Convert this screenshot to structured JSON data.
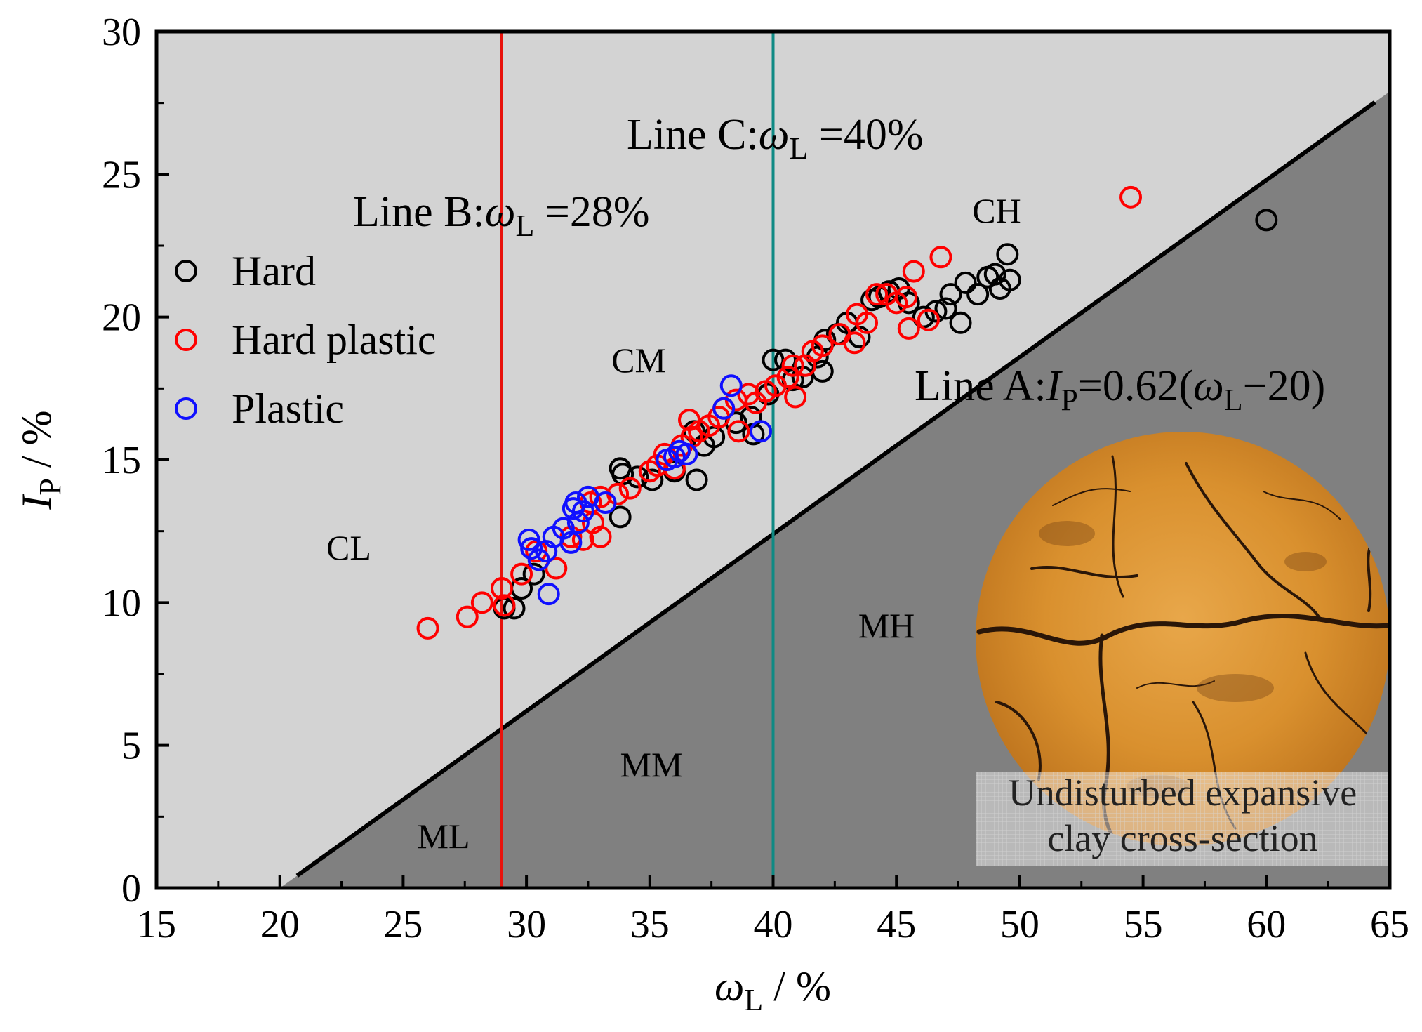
{
  "colors": {
    "upper_region": "#d3d3d3",
    "lower_region": "#808080",
    "line_a": "#000000",
    "line_b": "#e8120c",
    "line_c": "#0f8a84",
    "hard": "#000000",
    "hard_plastic": "#ff0000",
    "plastic": "#1010ff"
  },
  "chart_data": {
    "type": "scatter",
    "xlabel_main": "ω",
    "xlabel_sub": "L",
    "xlabel_tail": " / %",
    "ylabel_main": "I",
    "ylabel_sub": "P",
    "ylabel_tail": " / %",
    "xlim": [
      15,
      65
    ],
    "ylim": [
      0,
      30
    ],
    "x_ticks": [
      "15",
      "20",
      "25",
      "30",
      "35",
      "40",
      "45",
      "50",
      "55",
      "60",
      "65"
    ],
    "y_ticks": [
      "0",
      "5",
      "10",
      "15",
      "20",
      "25",
      "30"
    ],
    "lines": {
      "a": {
        "prefix": "Line A",
        "colon": ":",
        "var_main": "I",
        "var_sub": "P",
        "eq": "=0.62(",
        "w": "ω",
        "w_sub": "L",
        "tail": "−20)",
        "slope": 0.62,
        "x0": 20
      },
      "b": {
        "prefix": "Line B",
        "colon": ":",
        "w": "ω",
        "w_sub": "L",
        "eq": " =28%",
        "x": 29
      },
      "c": {
        "prefix": "Line C",
        "colon": ":",
        "w": "ω",
        "w_sub": "L",
        "eq": " =40%",
        "x": 40
      }
    },
    "regions": [
      "CH",
      "CM",
      "CL",
      "MH",
      "MM",
      "ML"
    ],
    "legend": [
      "Hard",
      "Hard plastic",
      "Plastic"
    ],
    "inset_caption": [
      "Undisturbed expansive",
      "clay cross-section"
    ],
    "series": [
      {
        "name": "Hard",
        "points": [
          [
            29.1,
            9.8
          ],
          [
            29.5,
            9.8
          ],
          [
            29.8,
            10.5
          ],
          [
            30.3,
            11.0
          ],
          [
            33.8,
            13.0
          ],
          [
            33.9,
            14.5
          ],
          [
            33.8,
            14.7
          ],
          [
            34.5,
            14.4
          ],
          [
            35.1,
            14.3
          ],
          [
            36.0,
            14.6
          ],
          [
            36.9,
            14.3
          ],
          [
            36.8,
            16.0
          ],
          [
            37.2,
            15.5
          ],
          [
            37.6,
            15.8
          ],
          [
            38.5,
            16.3
          ],
          [
            39.1,
            16.5
          ],
          [
            39.2,
            15.9
          ],
          [
            39.8,
            17.3
          ],
          [
            40.0,
            18.5
          ],
          [
            40.5,
            18.5
          ],
          [
            40.8,
            17.8
          ],
          [
            41.2,
            17.9
          ],
          [
            41.8,
            18.6
          ],
          [
            42.0,
            18.1
          ],
          [
            42.1,
            19.2
          ],
          [
            42.6,
            19.4
          ],
          [
            43.0,
            19.8
          ],
          [
            43.5,
            19.3
          ],
          [
            44.0,
            20.6
          ],
          [
            44.3,
            20.7
          ],
          [
            44.7,
            20.9
          ],
          [
            45.1,
            21.0
          ],
          [
            45.5,
            20.5
          ],
          [
            46.1,
            20.0
          ],
          [
            46.6,
            20.2
          ],
          [
            47.0,
            20.3
          ],
          [
            47.2,
            20.8
          ],
          [
            47.6,
            19.8
          ],
          [
            47.8,
            21.2
          ],
          [
            48.3,
            20.8
          ],
          [
            48.7,
            21.4
          ],
          [
            49.0,
            21.5
          ],
          [
            49.2,
            21.0
          ],
          [
            49.5,
            22.2
          ],
          [
            49.6,
            21.3
          ],
          [
            60.0,
            23.4
          ]
        ]
      },
      {
        "name": "Hard plastic",
        "points": [
          [
            26.0,
            9.1
          ],
          [
            27.6,
            9.5
          ],
          [
            28.2,
            10.0
          ],
          [
            29.0,
            10.5
          ],
          [
            29.1,
            9.9
          ],
          [
            29.8,
            11.0
          ],
          [
            30.4,
            11.8
          ],
          [
            31.2,
            11.2
          ],
          [
            31.8,
            12.3
          ],
          [
            32.3,
            12.2
          ],
          [
            32.7,
            12.8
          ],
          [
            33.0,
            12.3
          ],
          [
            32.6,
            13.5
          ],
          [
            33.0,
            13.7
          ],
          [
            33.7,
            13.8
          ],
          [
            34.2,
            14.0
          ],
          [
            35.0,
            14.6
          ],
          [
            35.3,
            14.8
          ],
          [
            35.6,
            15.2
          ],
          [
            36.0,
            14.7
          ],
          [
            36.3,
            15.5
          ],
          [
            36.7,
            15.8
          ],
          [
            36.6,
            16.4
          ],
          [
            37.0,
            16.0
          ],
          [
            37.4,
            16.2
          ],
          [
            37.8,
            16.5
          ],
          [
            38.0,
            16.8
          ],
          [
            38.5,
            17.1
          ],
          [
            38.6,
            16.0
          ],
          [
            39.0,
            17.3
          ],
          [
            39.3,
            17.0
          ],
          [
            39.7,
            17.4
          ],
          [
            40.1,
            17.6
          ],
          [
            40.6,
            17.9
          ],
          [
            40.8,
            18.3
          ],
          [
            40.9,
            17.2
          ],
          [
            41.3,
            18.3
          ],
          [
            41.6,
            18.8
          ],
          [
            42.0,
            19.0
          ],
          [
            42.7,
            19.4
          ],
          [
            43.3,
            19.1
          ],
          [
            43.4,
            20.1
          ],
          [
            43.8,
            19.8
          ],
          [
            44.2,
            20.8
          ],
          [
            44.6,
            20.8
          ],
          [
            45.0,
            20.5
          ],
          [
            45.4,
            20.7
          ],
          [
            45.5,
            19.6
          ],
          [
            45.7,
            21.6
          ],
          [
            46.3,
            19.9
          ],
          [
            46.8,
            22.1
          ],
          [
            54.5,
            24.2
          ]
        ]
      },
      {
        "name": "Plastic",
        "points": [
          [
            30.1,
            12.2
          ],
          [
            30.2,
            11.9
          ],
          [
            30.5,
            11.5
          ],
          [
            30.8,
            11.8
          ],
          [
            30.9,
            10.3
          ],
          [
            31.1,
            12.3
          ],
          [
            31.5,
            12.6
          ],
          [
            31.8,
            12.1
          ],
          [
            31.9,
            13.3
          ],
          [
            32.0,
            13.5
          ],
          [
            32.1,
            12.8
          ],
          [
            32.3,
            13.2
          ],
          [
            32.5,
            13.7
          ],
          [
            33.2,
            13.5
          ],
          [
            35.7,
            15.0
          ],
          [
            36.0,
            15.1
          ],
          [
            36.2,
            15.3
          ],
          [
            36.5,
            15.2
          ],
          [
            38.0,
            16.8
          ],
          [
            38.3,
            17.6
          ],
          [
            39.5,
            16.0
          ]
        ]
      }
    ]
  }
}
